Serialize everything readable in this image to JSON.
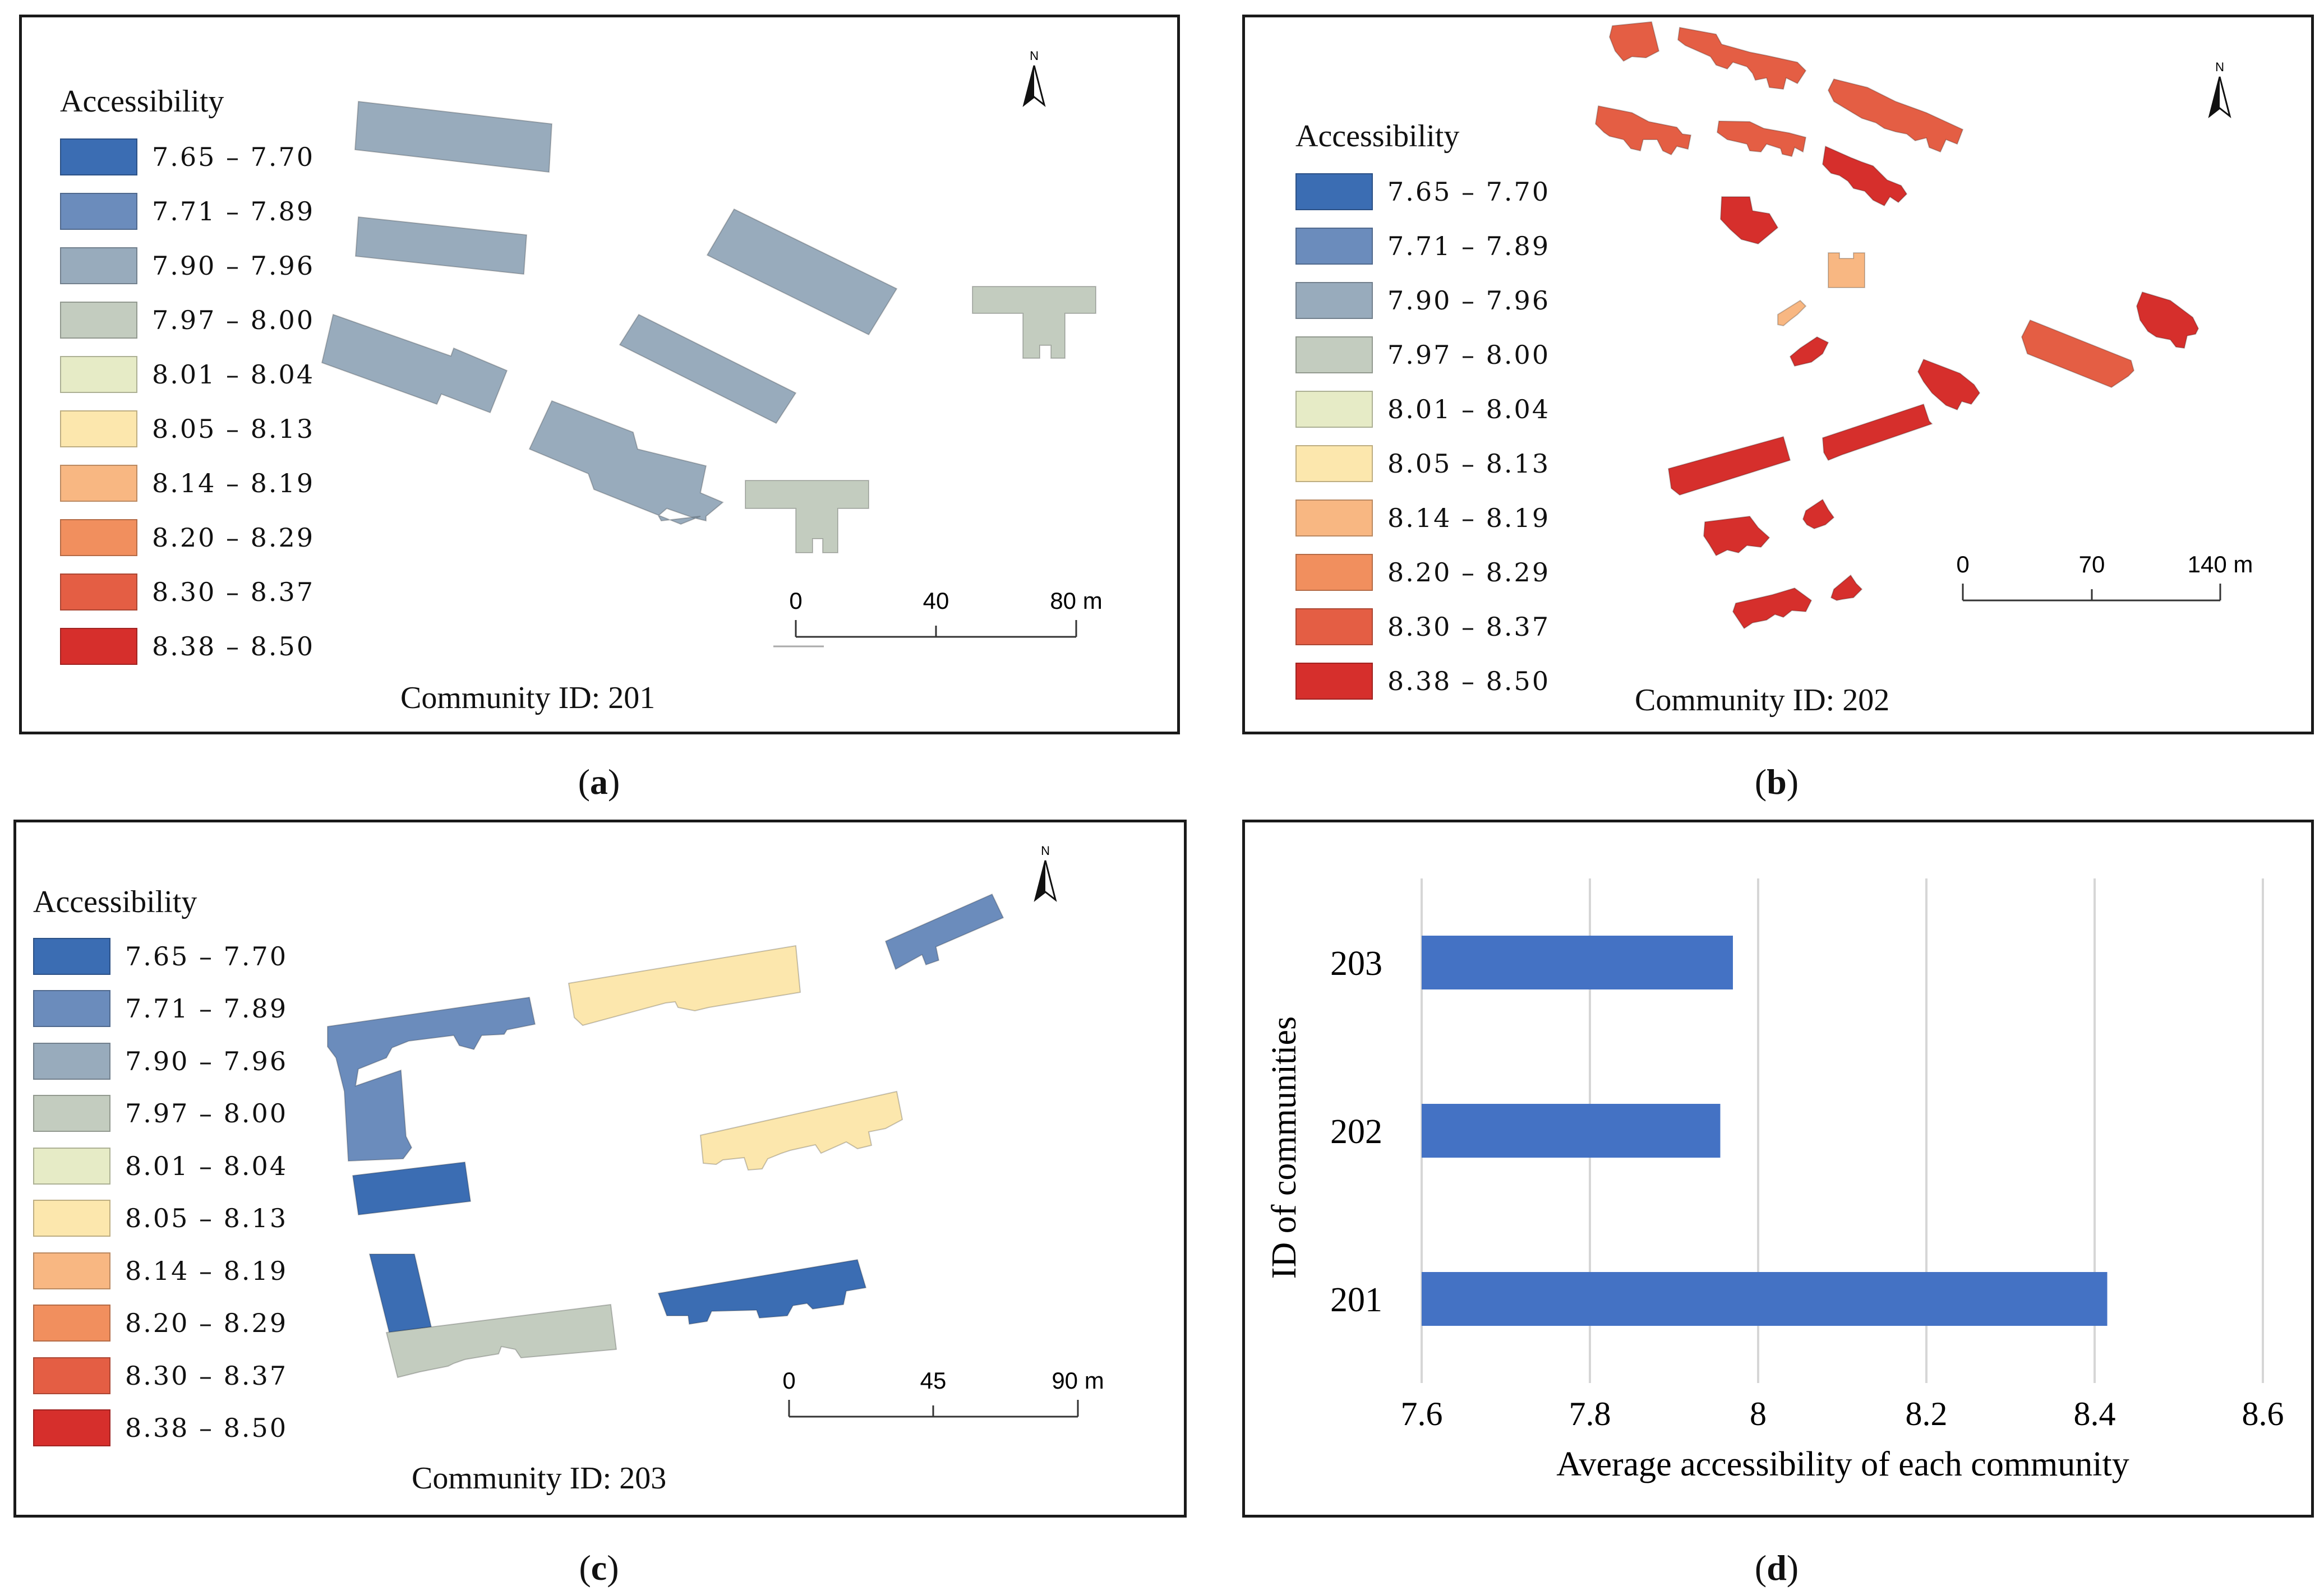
{
  "legend": {
    "title": "Accessibility",
    "classes": [
      {
        "label": "7.65 – 7.70",
        "color": "#3b6db3"
      },
      {
        "label": "7.71 – 7.89",
        "color": "#6b8cbc"
      },
      {
        "label": "7.90 – 7.96",
        "color": "#98abbc"
      },
      {
        "label": "7.97 – 8.00",
        "color": "#c3ccbf"
      },
      {
        "label": "8.01 – 8.04",
        "color": "#e6ebc6"
      },
      {
        "label": "8.05 – 8.13",
        "color": "#fce7ad"
      },
      {
        "label": "8.14 – 8.19",
        "color": "#f8b782"
      },
      {
        "label": "8.20 – 8.29",
        "color": "#f18f5e"
      },
      {
        "label": "8.30 – 8.37",
        "color": "#e45e44"
      },
      {
        "label": "8.38 – 8.50",
        "color": "#d62f2c"
      }
    ]
  },
  "north_arrow": {
    "label": "N"
  },
  "maps": {
    "a": {
      "community": "Community ID: 201",
      "caption_letter": "a",
      "scale_ticks": [
        "0",
        "40",
        "80 m"
      ]
    },
    "b": {
      "community": "Community ID: 202",
      "caption_letter": "b",
      "scale_ticks": [
        "0",
        "70",
        "140 m"
      ]
    },
    "c": {
      "community": "Community ID: 203",
      "caption_letter": "c",
      "scale_ticks": [
        "0",
        "45",
        "90 m"
      ]
    }
  },
  "panel_d": {
    "caption_letter": "d"
  },
  "chart_data": {
    "type": "bar",
    "orientation": "horizontal",
    "categories": [
      "203",
      "202",
      "201"
    ],
    "values": [
      7.97,
      7.955,
      8.415
    ],
    "xlabel": "Average accessibility of each community",
    "ylabel": "ID of communities",
    "xlim": [
      7.6,
      8.6
    ],
    "xticks": [
      7.6,
      7.8,
      8,
      8.2,
      8.4,
      8.6
    ],
    "xtick_labels": [
      "7.6",
      "7.8",
      "8",
      "8.2",
      "8.4",
      "8.6"
    ],
    "bar_color": "#4472c4",
    "grid": "vertical"
  }
}
